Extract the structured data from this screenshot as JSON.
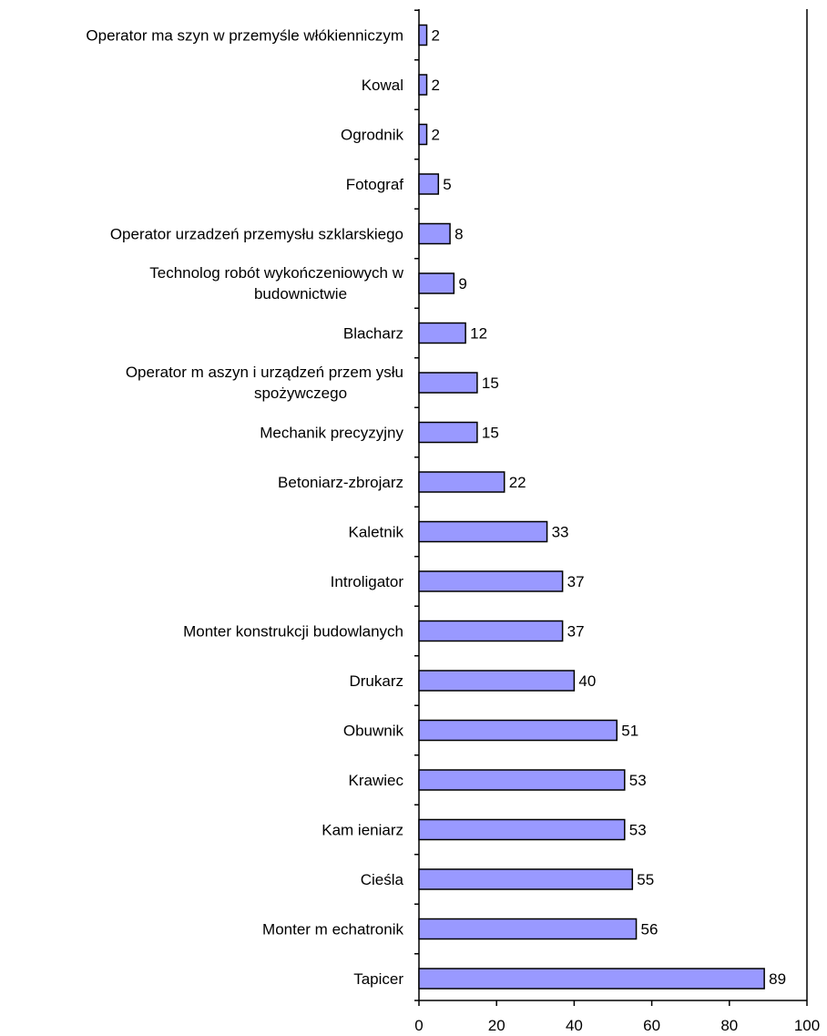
{
  "chart_data": {
    "type": "bar",
    "orientation": "horizontal",
    "categories": [
      [
        "Operator ma szyn w przemyśle włókienniczym"
      ],
      [
        "Kowal"
      ],
      [
        "Ogrodnik"
      ],
      [
        "Fotograf"
      ],
      [
        "Operator urzadzeń przemysłu szklarskiego"
      ],
      [
        "Technolog robót wykończeniowych w",
        "budownictwie"
      ],
      [
        "Blacharz"
      ],
      [
        "Operator m aszyn i urządzeń przem ysłu",
        "spożywczego"
      ],
      [
        "Mechanik precyzyjny"
      ],
      [
        "Betoniarz-zbrojarz"
      ],
      [
        "Kaletnik"
      ],
      [
        "Introligator"
      ],
      [
        "Monter konstrukcji budowlanych"
      ],
      [
        "Drukarz"
      ],
      [
        "Obuwnik"
      ],
      [
        "Krawiec"
      ],
      [
        "Kam ieniarz"
      ],
      [
        "Cieśla"
      ],
      [
        "Monter m echatronik"
      ],
      [
        "Tapicer"
      ]
    ],
    "values": [
      2,
      2,
      2,
      5,
      8,
      9,
      12,
      15,
      15,
      22,
      33,
      37,
      37,
      40,
      51,
      53,
      53,
      55,
      56,
      89
    ],
    "xlim": [
      0,
      100
    ],
    "xticks": [
      0,
      20,
      40,
      60,
      80,
      100
    ],
    "grid": false,
    "bar_color": "#9999ff",
    "border_color": "#000000"
  }
}
